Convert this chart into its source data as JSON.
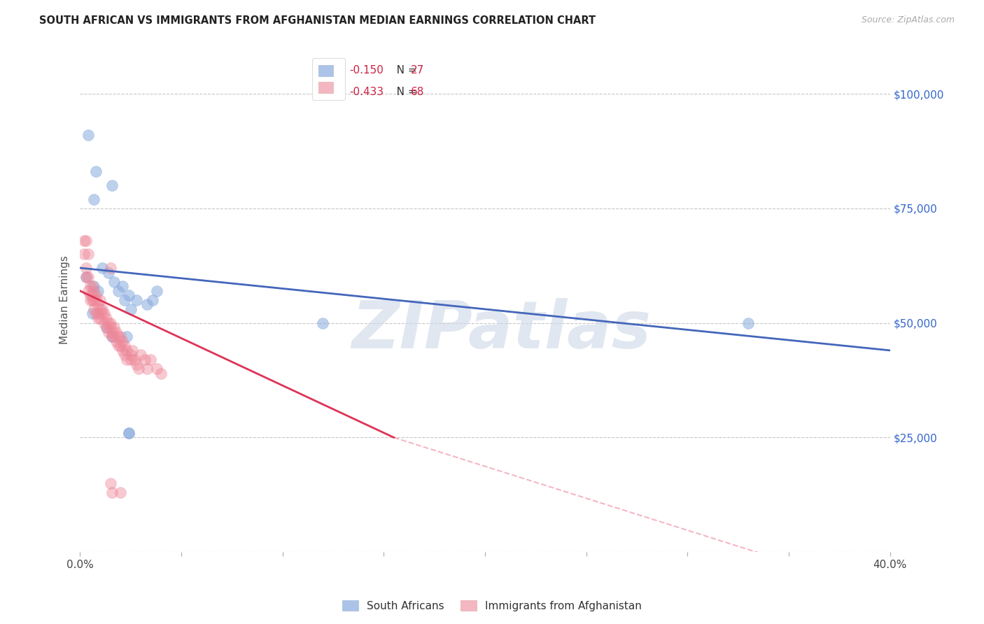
{
  "title": "SOUTH AFRICAN VS IMMIGRANTS FROM AFGHANISTAN MEDIAN EARNINGS CORRELATION CHART",
  "source": "Source: ZipAtlas.com",
  "ylabel": "Median Earnings",
  "xlim": [
    0.0,
    0.4
  ],
  "ylim": [
    0,
    110000
  ],
  "yticks": [
    0,
    25000,
    50000,
    75000,
    100000
  ],
  "ytick_labels": [
    "",
    "$25,000",
    "$50,000",
    "$75,000",
    "$100,000"
  ],
  "xticks": [
    0.0,
    0.05,
    0.1,
    0.15,
    0.2,
    0.25,
    0.3,
    0.35,
    0.4
  ],
  "background_color": "#ffffff",
  "grid_color": "#c8c8c8",
  "watermark": "ZIPatlas",
  "legend_R1": "-0.150",
  "legend_N1": "27",
  "legend_R2": "-0.433",
  "legend_N2": "68",
  "blue_color": "#88aadd",
  "pink_color": "#ee8899",
  "blue_line_color": "#4466bb",
  "pink_line_color": "#dd3355",
  "axis_color": "#3366cc",
  "title_color": "#222222",
  "south_africans_label": "South Africans",
  "afghanistan_label": "Immigrants from Afghanistan",
  "south_africans": [
    [
      0.004,
      91000
    ],
    [
      0.008,
      83000
    ],
    [
      0.007,
      77000
    ],
    [
      0.016,
      80000
    ],
    [
      0.003,
      60000
    ],
    [
      0.007,
      58000
    ],
    [
      0.009,
      57000
    ],
    [
      0.011,
      62000
    ],
    [
      0.014,
      61000
    ],
    [
      0.017,
      59000
    ],
    [
      0.019,
      57000
    ],
    [
      0.021,
      58000
    ],
    [
      0.024,
      56000
    ],
    [
      0.028,
      55000
    ],
    [
      0.033,
      54000
    ],
    [
      0.038,
      57000
    ],
    [
      0.036,
      55000
    ],
    [
      0.022,
      55000
    ],
    [
      0.025,
      53000
    ],
    [
      0.006,
      52000
    ],
    [
      0.013,
      49000
    ],
    [
      0.016,
      47000
    ],
    [
      0.023,
      47000
    ],
    [
      0.024,
      26000
    ],
    [
      0.024,
      26000
    ],
    [
      0.12,
      50000
    ],
    [
      0.33,
      50000
    ]
  ],
  "afghanistan": [
    [
      0.002,
      68000
    ],
    [
      0.003,
      68000
    ],
    [
      0.002,
      65000
    ],
    [
      0.003,
      62000
    ],
    [
      0.003,
      60000
    ],
    [
      0.004,
      65000
    ],
    [
      0.004,
      60000
    ],
    [
      0.004,
      57000
    ],
    [
      0.005,
      58000
    ],
    [
      0.005,
      56000
    ],
    [
      0.005,
      55000
    ],
    [
      0.006,
      58000
    ],
    [
      0.006,
      56000
    ],
    [
      0.006,
      55000
    ],
    [
      0.007,
      57000
    ],
    [
      0.007,
      55000
    ],
    [
      0.007,
      53000
    ],
    [
      0.008,
      56000
    ],
    [
      0.008,
      55000
    ],
    [
      0.008,
      52000
    ],
    [
      0.009,
      54000
    ],
    [
      0.009,
      52000
    ],
    [
      0.009,
      51000
    ],
    [
      0.01,
      55000
    ],
    [
      0.01,
      53000
    ],
    [
      0.01,
      51000
    ],
    [
      0.011,
      53000
    ],
    [
      0.011,
      52000
    ],
    [
      0.012,
      52000
    ],
    [
      0.012,
      50000
    ],
    [
      0.013,
      51000
    ],
    [
      0.013,
      49000
    ],
    [
      0.014,
      50000
    ],
    [
      0.014,
      48000
    ],
    [
      0.015,
      50000
    ],
    [
      0.015,
      49000
    ],
    [
      0.015,
      62000
    ],
    [
      0.016,
      48000
    ],
    [
      0.016,
      47000
    ],
    [
      0.017,
      49000
    ],
    [
      0.017,
      47000
    ],
    [
      0.018,
      48000
    ],
    [
      0.018,
      46000
    ],
    [
      0.019,
      47000
    ],
    [
      0.019,
      45000
    ],
    [
      0.02,
      47000
    ],
    [
      0.02,
      45000
    ],
    [
      0.021,
      46000
    ],
    [
      0.021,
      44000
    ],
    [
      0.022,
      45000
    ],
    [
      0.022,
      43000
    ],
    [
      0.023,
      44000
    ],
    [
      0.023,
      42000
    ],
    [
      0.025,
      43000
    ],
    [
      0.025,
      42000
    ],
    [
      0.026,
      44000
    ],
    [
      0.027,
      42000
    ],
    [
      0.028,
      41000
    ],
    [
      0.029,
      40000
    ],
    [
      0.03,
      43000
    ],
    [
      0.032,
      42000
    ],
    [
      0.033,
      40000
    ],
    [
      0.035,
      42000
    ],
    [
      0.038,
      40000
    ],
    [
      0.04,
      39000
    ],
    [
      0.015,
      15000
    ],
    [
      0.02,
      13000
    ],
    [
      0.016,
      13000
    ]
  ]
}
